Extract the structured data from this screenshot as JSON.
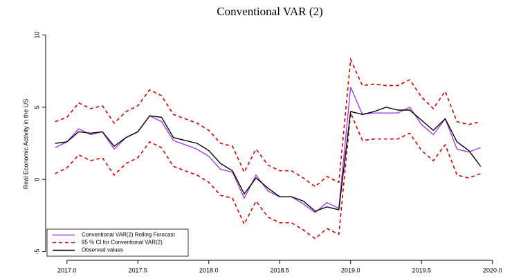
{
  "chart_data": {
    "type": "line",
    "title": "Conventional VAR (2)",
    "y_label": "Real Economic Activity in the US",
    "x": [
      2016.917,
      2017.0,
      2017.083,
      2017.167,
      2017.25,
      2017.333,
      2017.417,
      2017.5,
      2017.583,
      2017.667,
      2017.75,
      2017.833,
      2017.917,
      2018.0,
      2018.083,
      2018.167,
      2018.25,
      2018.333,
      2018.417,
      2018.5,
      2018.583,
      2018.667,
      2018.75,
      2018.833,
      2018.917,
      2019.0,
      2019.083,
      2019.167,
      2019.25,
      2019.333,
      2019.417,
      2019.5,
      2019.583,
      2019.667,
      2019.75,
      2019.833,
      2019.917
    ],
    "series": [
      {
        "name": "Conventional VAR(2) Rolling Forecast",
        "color": "#a040e0",
        "dashed": false,
        "values": [
          2.2,
          2.6,
          3.5,
          3.1,
          3.3,
          2.1,
          2.9,
          3.3,
          4.4,
          4.0,
          2.7,
          2.4,
          2.1,
          1.6,
          0.7,
          0.5,
          -1.3,
          0.3,
          -0.8,
          -1.2,
          -1.2,
          -1.7,
          -2.3,
          -1.6,
          -2.0,
          6.4,
          4.5,
          4.6,
          4.6,
          4.6,
          5.0,
          3.8,
          3.1,
          4.2,
          2.1,
          1.9,
          2.2
        ]
      },
      {
        "name": "95 % CI for Conventional VAR(2)",
        "color": "#cc0000",
        "dashed": true,
        "upper": [
          4.0,
          4.3,
          5.3,
          4.9,
          5.1,
          3.9,
          4.7,
          5.1,
          6.2,
          5.8,
          4.5,
          4.2,
          3.9,
          3.4,
          2.5,
          2.3,
          0.5,
          2.1,
          1.0,
          0.6,
          0.6,
          0.1,
          -0.5,
          0.2,
          -0.2,
          8.3,
          6.5,
          6.6,
          6.5,
          6.5,
          6.9,
          5.7,
          4.9,
          6.1,
          4.0,
          3.8,
          4.0
        ],
        "lower": [
          0.4,
          0.8,
          1.7,
          1.3,
          1.5,
          0.3,
          1.1,
          1.5,
          2.6,
          2.2,
          0.9,
          0.6,
          0.3,
          -0.2,
          -1.1,
          -1.3,
          -3.1,
          -1.5,
          -2.6,
          -3.0,
          -3.0,
          -3.5,
          -4.1,
          -3.4,
          -3.8,
          4.6,
          2.7,
          2.8,
          2.8,
          2.8,
          3.2,
          2.0,
          1.3,
          2.4,
          0.3,
          0.1,
          0.4
        ]
      },
      {
        "name": "Observed values",
        "color": "#000000",
        "dashed": false,
        "values": [
          2.5,
          2.6,
          3.3,
          3.2,
          3.3,
          2.3,
          2.9,
          3.3,
          4.4,
          4.3,
          2.9,
          2.7,
          2.5,
          2.0,
          1.1,
          0.6,
          -1.0,
          0.1,
          -0.6,
          -1.2,
          -1.2,
          -1.5,
          -2.2,
          -1.9,
          -2.1,
          4.7,
          4.5,
          4.7,
          5.0,
          4.8,
          4.8,
          4.1,
          3.4,
          4.2,
          2.6,
          2.0,
          0.9
        ]
      }
    ],
    "xlim": [
      2016.85,
      2020.05
    ],
    "xticks": [
      {
        "value": 2017,
        "label": "2017.0"
      },
      {
        "value": 2017.5,
        "label": "2017.5"
      },
      {
        "value": 2018,
        "label": "2018.0"
      },
      {
        "value": 2018.5,
        "label": "2018.5"
      },
      {
        "value": 2019,
        "label": "2019.0"
      },
      {
        "value": 2019.5,
        "label": "2019.5"
      },
      {
        "value": 2020,
        "label": "2020.0"
      }
    ],
    "ylim": [
      -5.6,
      10.6
    ],
    "yticks": [
      -5,
      0,
      5,
      10
    ],
    "legend": "bottomleft",
    "grid": false
  }
}
